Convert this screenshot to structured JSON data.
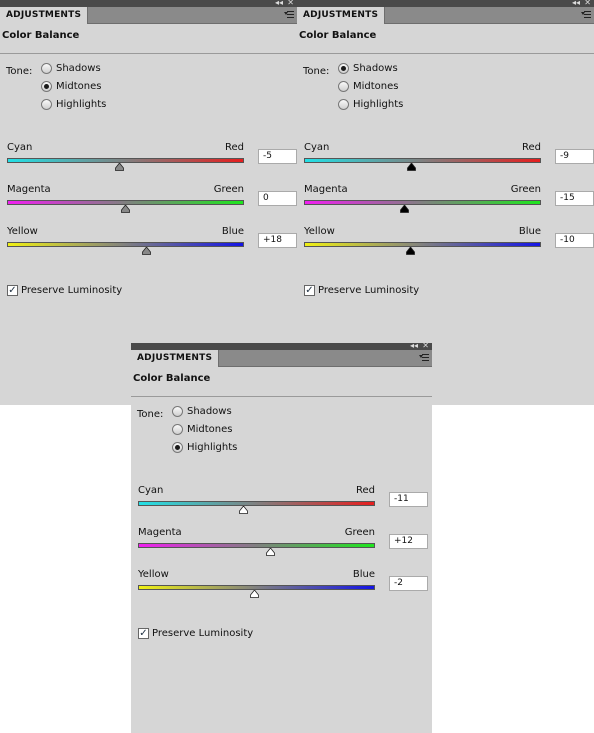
{
  "panels": [
    {
      "tab": "ADJUSTMENTS",
      "title": "Color Balance",
      "tone_label": "Tone:",
      "tones": [
        {
          "label": "Shadows",
          "checked": false
        },
        {
          "label": "Midtones",
          "checked": true
        },
        {
          "label": "Highlights",
          "checked": false
        }
      ],
      "sliders": [
        {
          "left": "Cyan",
          "right": "Red",
          "value": "-5",
          "num": -5,
          "c1": "#22e0e6",
          "c2": "#e61e1e"
        },
        {
          "left": "Magenta",
          "right": "Green",
          "value": "0",
          "num": 0,
          "c1": "#f01ef0",
          "c2": "#1ee61e"
        },
        {
          "left": "Yellow",
          "right": "Blue",
          "value": "+18",
          "num": 18,
          "c1": "#f0f014",
          "c2": "#1414e6"
        }
      ],
      "preserve": "Preserve Luminosity",
      "knob_color": "#888888"
    },
    {
      "tab": "ADJUSTMENTS",
      "title": "Color Balance",
      "tone_label": "Tone:",
      "tones": [
        {
          "label": "Shadows",
          "checked": true
        },
        {
          "label": "Midtones",
          "checked": false
        },
        {
          "label": "Highlights",
          "checked": false
        }
      ],
      "sliders": [
        {
          "left": "Cyan",
          "right": "Red",
          "value": "-9",
          "num": -9,
          "c1": "#22e0e6",
          "c2": "#e61e1e"
        },
        {
          "left": "Magenta",
          "right": "Green",
          "value": "-15",
          "num": -15,
          "c1": "#f01ef0",
          "c2": "#1ee61e"
        },
        {
          "left": "Yellow",
          "right": "Blue",
          "value": "-10",
          "num": -10,
          "c1": "#f0f014",
          "c2": "#1414e6"
        }
      ],
      "preserve": "Preserve Luminosity",
      "knob_color": "#000000"
    },
    {
      "tab": "ADJUSTMENTS",
      "title": "Color Balance",
      "tone_label": "Tone:",
      "tones": [
        {
          "label": "Shadows",
          "checked": false
        },
        {
          "label": "Midtones",
          "checked": false
        },
        {
          "label": "Highlights",
          "checked": true
        }
      ],
      "sliders": [
        {
          "left": "Cyan",
          "right": "Red",
          "value": "-11",
          "num": -11,
          "c1": "#22e0e6",
          "c2": "#e61e1e"
        },
        {
          "left": "Magenta",
          "right": "Green",
          "value": "+12",
          "num": 12,
          "c1": "#f01ef0",
          "c2": "#1ee61e"
        },
        {
          "left": "Yellow",
          "right": "Blue",
          "value": "-2",
          "num": -2,
          "c1": "#f0f014",
          "c2": "#1414e6"
        }
      ],
      "preserve": "Preserve Luminosity",
      "knob_color": "#ffffff"
    }
  ]
}
